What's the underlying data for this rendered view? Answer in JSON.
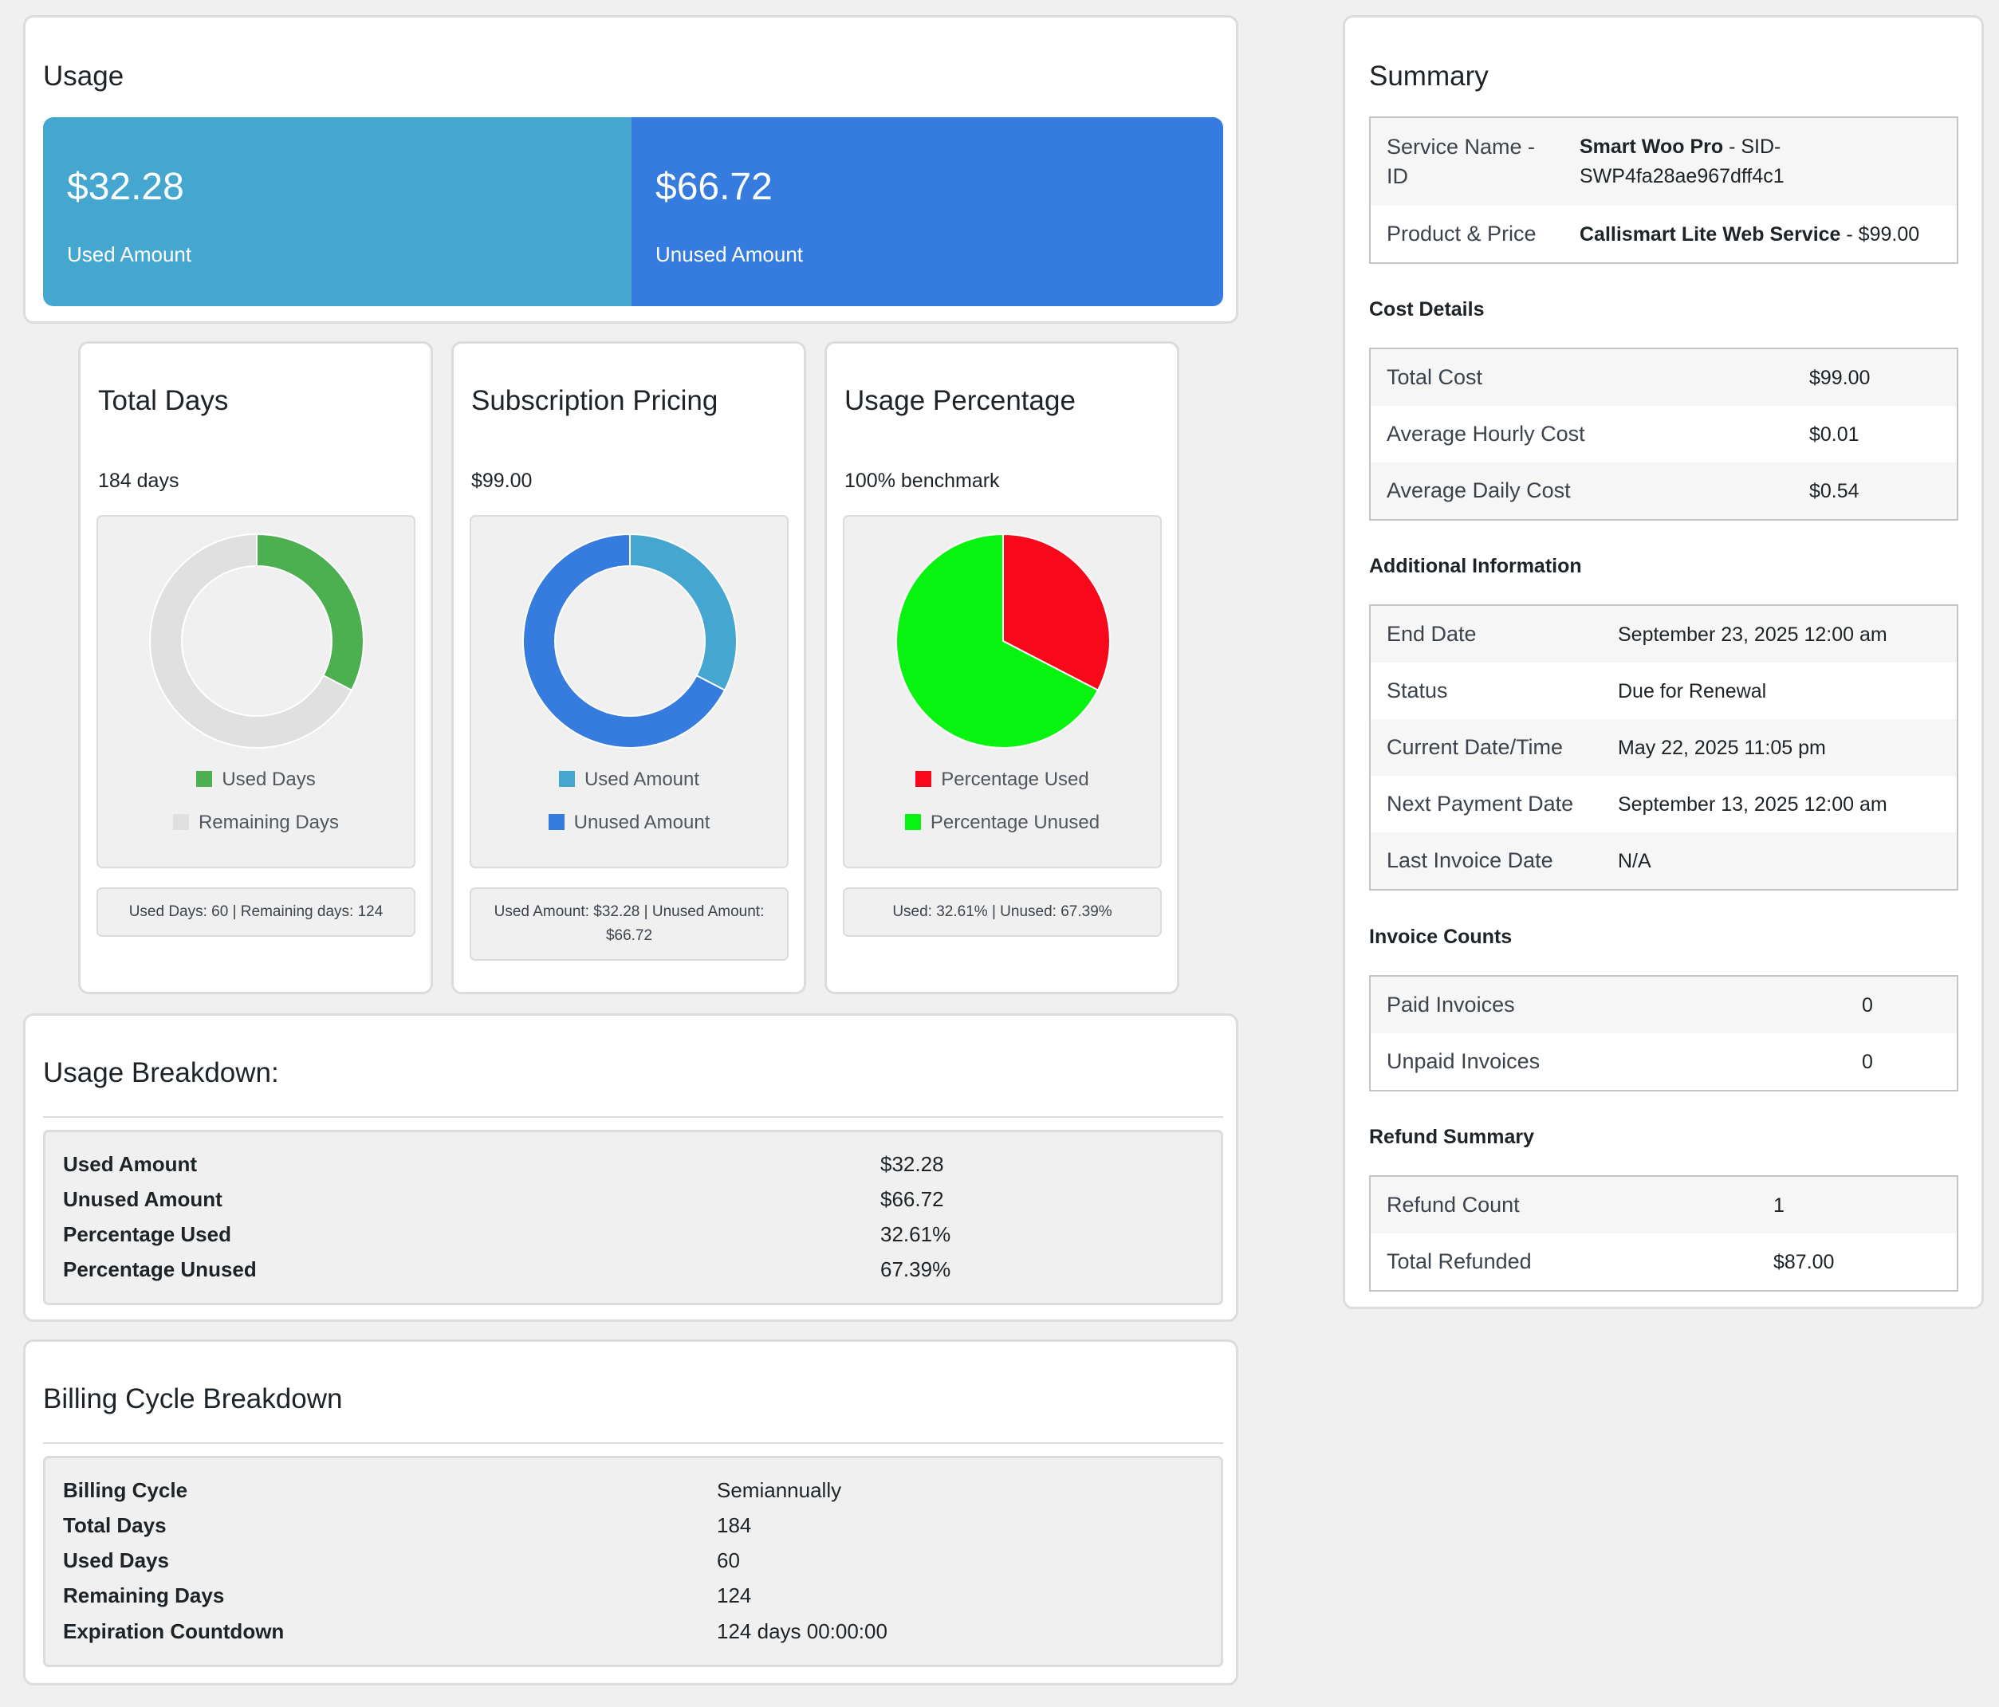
{
  "usage": {
    "title": "Usage",
    "used_amount": "$32.28",
    "used_label": "Used Amount",
    "unused_amount": "$66.72",
    "unused_label": "Unused Amount"
  },
  "total_days": {
    "title": "Total Days",
    "value": "184 days",
    "legend_used": "Used Days",
    "legend_remaining": "Remaining Days",
    "stat": "Used Days: 60 | Remaining days: 124"
  },
  "pricing": {
    "title": "Subscription Pricing",
    "value": "$99.00",
    "legend_used": "Used Amount",
    "legend_unused": "Unused Amount",
    "stat_line1": "Used Amount: $32.28 | Unused Amount:",
    "stat_line2": "$66.72"
  },
  "percentage": {
    "title": "Usage Percentage",
    "value": "100% benchmark",
    "legend_used": "Percentage Used",
    "legend_unused": "Percentage Unused",
    "stat": "Used: 32.61% | Unused: 67.39%"
  },
  "chart_data": [
    {
      "type": "pie",
      "variant": "doughnut",
      "labels": [
        "Used Days",
        "Remaining Days"
      ],
      "values": [
        60,
        124
      ],
      "colors": [
        "#4caf50",
        "#e0e0e0"
      ]
    },
    {
      "type": "pie",
      "variant": "doughnut",
      "labels": [
        "Used Amount",
        "Unused Amount"
      ],
      "values": [
        32.28,
        66.72
      ],
      "colors": [
        "#45a7d0",
        "#357cde"
      ]
    },
    {
      "type": "pie",
      "labels": [
        "Percentage Used",
        "Percentage Unused"
      ],
      "values": [
        32.61,
        67.39
      ],
      "colors": [
        "#f7091b",
        "#08f30f"
      ]
    }
  ],
  "breakdown": {
    "title": "Usage Breakdown:",
    "rows": [
      {
        "k": "Used Amount",
        "v": "$32.28"
      },
      {
        "k": "Unused Amount",
        "v": "$66.72"
      },
      {
        "k": "Percentage Used",
        "v": "32.61%"
      },
      {
        "k": "Percentage Unused",
        "v": "67.39%"
      }
    ]
  },
  "billing": {
    "title": "Billing Cycle Breakdown",
    "rows": [
      {
        "k": "Billing Cycle",
        "v": "Semiannually"
      },
      {
        "k": "Total Days",
        "v": "184"
      },
      {
        "k": "Used Days",
        "v": "60"
      },
      {
        "k": "Remaining Days",
        "v": "124"
      },
      {
        "k": "Expiration Countdown",
        "v": "124 days 00:00:00"
      }
    ]
  },
  "summary": {
    "title": "Summary",
    "service_key_1": "Service Name -",
    "service_key_2": "ID",
    "service_name": "Smart Woo Pro",
    "service_id_part1": " - SID-",
    "service_id_part2": "SWP4fa28ae967dff4c1",
    "product_key": "Product & Price",
    "product_name": "Callismart Lite Web Service",
    "product_price": " - $99.00",
    "cost_title": "Cost Details",
    "cost_rows": [
      {
        "k": "Total Cost",
        "v": "$99.00"
      },
      {
        "k": "Average Hourly Cost",
        "v": "$0.01"
      },
      {
        "k": "Average Daily Cost",
        "v": "$0.54"
      }
    ],
    "info_title": "Additional Information",
    "info_rows": [
      {
        "k": "End Date",
        "v": "September 23, 2025 12:00 am"
      },
      {
        "k": "Status",
        "v": "Due for Renewal"
      },
      {
        "k": "Current Date/Time",
        "v": "May 22, 2025 11:05 pm"
      },
      {
        "k": "Next Payment Date",
        "v": "September 13, 2025 12:00 am"
      },
      {
        "k": "Last Invoice Date",
        "v": "N/A"
      }
    ],
    "invoice_title": "Invoice Counts",
    "invoice_rows": [
      {
        "k": "Paid Invoices",
        "v": "0"
      },
      {
        "k": "Unpaid Invoices",
        "v": "0"
      }
    ],
    "refund_title": "Refund Summary",
    "refund_rows": [
      {
        "k": "Refund Count",
        "v": "1"
      },
      {
        "k": "Total Refunded",
        "v": "$87.00"
      }
    ]
  }
}
